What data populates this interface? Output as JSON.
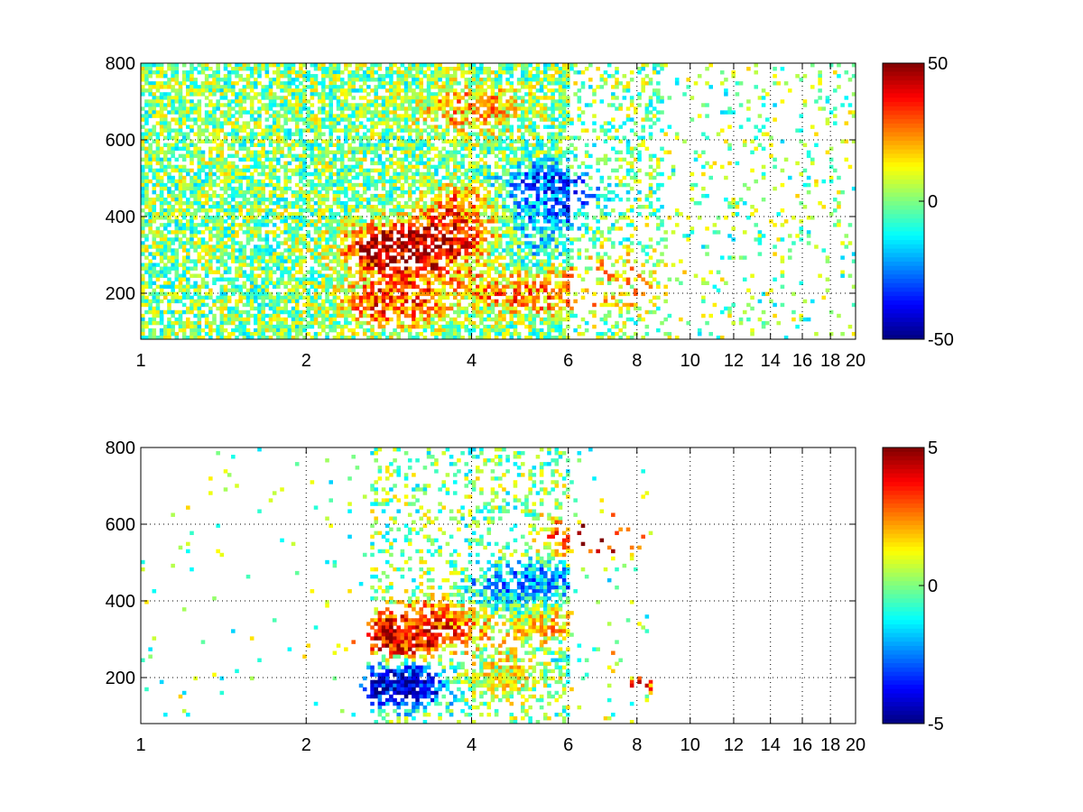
{
  "chart_data": [
    {
      "type": "heatmap",
      "title": "",
      "xlabel": "",
      "ylabel": "",
      "x_scale": "log",
      "xlim": [
        1,
        20
      ],
      "ylim": [
        80,
        800
      ],
      "x_ticks": [
        1,
        2,
        4,
        6,
        8,
        10,
        12,
        14,
        16,
        18,
        20
      ],
      "x_tick_labels": [
        "1",
        "2",
        "4",
        "6",
        "8",
        "10",
        "12",
        "14",
        "16",
        "18",
        "20"
      ],
      "y_ticks": [
        200,
        400,
        600,
        800
      ],
      "y_tick_labels": [
        "200",
        "400",
        "600",
        "800"
      ],
      "grid": true,
      "colormap": "jet",
      "clim": [
        -50,
        50
      ],
      "colorbar_ticks": [
        50,
        0,
        -50
      ],
      "colorbar_tick_labels": [
        "50",
        "0",
        "-50"
      ],
      "features": [
        {
          "x": 2.9,
          "y": 315,
          "value": 45
        },
        {
          "x": 3.7,
          "y": 330,
          "value": 42
        },
        {
          "x": 4.2,
          "y": 420,
          "value": 35
        },
        {
          "x": 2.9,
          "y": 180,
          "value": 30
        },
        {
          "x": 4.2,
          "y": 250,
          "value": 22
        },
        {
          "x": 4.0,
          "y": 680,
          "value": 18
        },
        {
          "x": 5.0,
          "y": 420,
          "value": -35
        },
        {
          "x": 5.4,
          "y": 470,
          "value": -30
        },
        {
          "x": 4.8,
          "y": 290,
          "value": -20
        },
        {
          "x": 5.2,
          "y": 215,
          "value": 28
        },
        {
          "x": 6.8,
          "y": 230,
          "value": 15
        },
        {
          "x": 7.8,
          "y": 230,
          "value": 12
        }
      ]
    },
    {
      "type": "heatmap",
      "title": "",
      "xlabel": "",
      "ylabel": "",
      "x_scale": "log",
      "xlim": [
        1,
        20
      ],
      "ylim": [
        80,
        800
      ],
      "x_ticks": [
        1,
        2,
        4,
        6,
        8,
        10,
        12,
        14,
        16,
        18,
        20
      ],
      "x_tick_labels": [
        "1",
        "2",
        "4",
        "6",
        "8",
        "10",
        "12",
        "14",
        "16",
        "18",
        "20"
      ],
      "y_ticks": [
        200,
        400,
        600,
        800
      ],
      "y_tick_labels": [
        "200",
        "400",
        "600",
        "800"
      ],
      "grid": true,
      "colormap": "jet",
      "clim": [
        -5,
        5
      ],
      "colorbar_ticks": [
        5,
        0,
        -5
      ],
      "colorbar_tick_labels": [
        "5",
        "0",
        "-5"
      ],
      "features": [
        {
          "x": 3.0,
          "y": 310,
          "value": 4
        },
        {
          "x": 3.8,
          "y": 360,
          "value": 3
        },
        {
          "x": 4.5,
          "y": 400,
          "value": -3
        },
        {
          "x": 5.2,
          "y": 350,
          "value": 2
        },
        {
          "x": 3.0,
          "y": 180,
          "value": -4
        },
        {
          "x": 4.5,
          "y": 200,
          "value": 1
        },
        {
          "x": 5.5,
          "y": 450,
          "value": -2
        },
        {
          "x": 6.7,
          "y": 560,
          "value": 4
        },
        {
          "x": 7.8,
          "y": 220,
          "value": 4
        },
        {
          "x": 6.8,
          "y": 240,
          "value": -1
        }
      ]
    }
  ]
}
